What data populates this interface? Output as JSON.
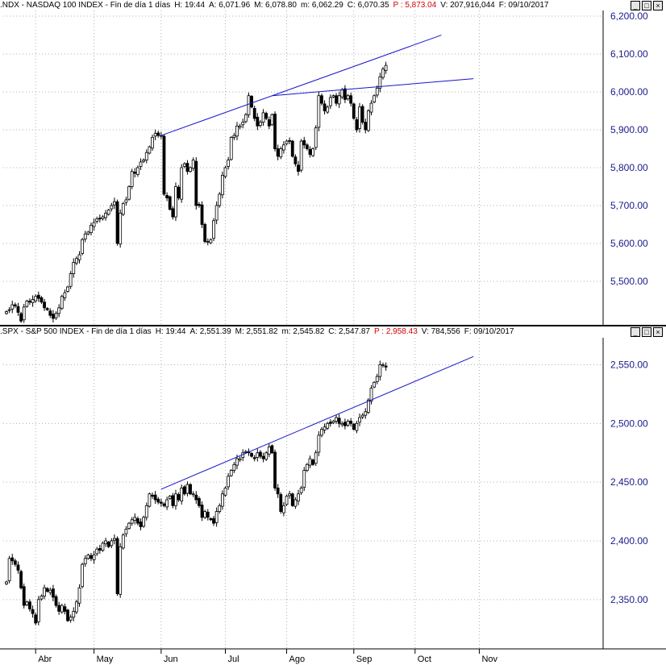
{
  "panels": [
    {
      "id": "ndx",
      "header": {
        "symbol": ".NDX - NASDAQ 100 INDEX - Fin de día 1 días",
        "h": "H: 19:44",
        "a": "A: 6,071.96",
        "m": "M: 6,078.80",
        "mn": "m: 6,062.29",
        "c": "C: 6,070.35",
        "p": "P : 5,873.04",
        "v": "V: 207,916,044",
        "f": "F: 09/10/2017"
      }
    },
    {
      "id": "spx",
      "header": {
        "symbol": ".SPX - S&P 500 INDEX - Fin de día 1 días",
        "h": "H: 19:44",
        "a": "A: 2,551.39",
        "m": "M: 2,551.82",
        "mn": "m: 2,545.82",
        "c": "C: 2,547.87",
        "p": "P : 2,958.43",
        "v": "V: 784,556",
        "f": "F: 09/10/2017"
      }
    }
  ],
  "window_buttons": [
    "_",
    "□",
    "×"
  ],
  "colors": {
    "axis_text": "#1a1a8c",
    "trendline": "#1515cc",
    "candle": "#000000",
    "grid": "#b0b0b0",
    "price_flag": "#d40000"
  },
  "chart_data": [
    {
      "type": "candlestick",
      "title": ".NDX - NASDAQ 100 INDEX",
      "ylim": [
        5385,
        6215
      ],
      "y_ticks": [
        5500,
        5600,
        5700,
        5800,
        5900,
        6000,
        6100,
        6200
      ],
      "y_tick_labels": [
        "5,500.00",
        "5,600.00",
        "5,700.00",
        "5,800.00",
        "5,900.00",
        "6,000.00",
        "6,100.00",
        "6,200.00"
      ],
      "grid": true,
      "trendlines": [
        {
          "from": [
            "2017-06-01",
            5885
          ],
          "to": [
            "2017-10-13",
            6150
          ]
        },
        {
          "from": [
            "2017-07-25",
            5990
          ],
          "to": [
            "2017-10-30",
            6035
          ]
        }
      ],
      "approx_close": [
        5420,
        5425,
        5438,
        5435,
        5418,
        5395,
        5432,
        5448,
        5445,
        5452,
        5460,
        5455,
        5445,
        5430,
        5425,
        5410,
        5402,
        5415,
        5430,
        5460,
        5470,
        5485,
        5520,
        5550,
        5560,
        5570,
        5610,
        5625,
        5630,
        5648,
        5655,
        5665,
        5665,
        5670,
        5680,
        5688,
        5700,
        5710,
        5600,
        5680,
        5705,
        5715,
        5750,
        5790,
        5785,
        5800,
        5815,
        5820,
        5840,
        5855,
        5880,
        5890,
        5885,
        5885,
        5730,
        5720,
        5690,
        5670,
        5750,
        5720,
        5800,
        5810,
        5790,
        5800,
        5820,
        5700,
        5700,
        5650,
        5605,
        5605,
        5610,
        5660,
        5700,
        5730,
        5780,
        5800,
        5820,
        5880,
        5885,
        5910,
        5910,
        5920,
        5940,
        5990,
        5960,
        5930,
        5910,
        5920,
        5945,
        5930,
        5910,
        5940,
        5850,
        5830,
        5850,
        5860,
        5870,
        5870,
        5830,
        5810,
        5790,
        5870,
        5860,
        5850,
        5835,
        5850,
        5905,
        5990,
        5970,
        5950,
        5960,
        5985,
        5990,
        5970,
        5990,
        6005,
        5980,
        5990,
        5970,
        5930,
        5900,
        5960,
        5920,
        5900,
        5950,
        5970,
        5990,
        6010,
        6040,
        6060,
        6070
      ],
      "x_ticks": [
        {
          "label": "Abr",
          "date": "2017-04-03"
        },
        {
          "label": "May",
          "date": "2017-05-01"
        },
        {
          "label": "Jun",
          "date": "2017-06-01"
        },
        {
          "label": "Jul",
          "date": "2017-07-03"
        },
        {
          "label": "Ago",
          "date": "2017-08-01"
        },
        {
          "label": "Sep",
          "date": "2017-09-01"
        },
        {
          "label": "Oct",
          "date": "2017-10-02"
        },
        {
          "label": "Nov",
          "date": "2017-11-01"
        }
      ]
    },
    {
      "type": "candlestick",
      "title": ".SPX - S&P 500 INDEX",
      "ylim": [
        2308,
        2573
      ],
      "y_ticks": [
        2350,
        2400,
        2450,
        2500,
        2550
      ],
      "y_tick_labels": [
        "2,350.00",
        "2,400.00",
        "2,450.00",
        "2,500.00",
        "2,550.00"
      ],
      "grid": true,
      "trendlines": [
        {
          "from": [
            "2017-06-01",
            2444
          ],
          "to": [
            "2017-10-30",
            2557
          ]
        }
      ],
      "approx_close": [
        2365,
        2385,
        2383,
        2380,
        2375,
        2360,
        2345,
        2348,
        2342,
        2338,
        2330,
        2350,
        2353,
        2360,
        2357,
        2358,
        2352,
        2345,
        2340,
        2345,
        2340,
        2332,
        2335,
        2340,
        2348,
        2360,
        2380,
        2385,
        2388,
        2385,
        2388,
        2393,
        2392,
        2398,
        2400,
        2395,
        2400,
        2402,
        2355,
        2395,
        2405,
        2410,
        2415,
        2418,
        2420,
        2415,
        2412,
        2420,
        2430,
        2440,
        2438,
        2435,
        2433,
        2432,
        2430,
        2435,
        2438,
        2430,
        2440,
        2435,
        2445,
        2440,
        2448,
        2440,
        2440,
        2435,
        2430,
        2420,
        2425,
        2420,
        2418,
        2415,
        2425,
        2430,
        2440,
        2445,
        2455,
        2460,
        2465,
        2470,
        2470,
        2475,
        2476,
        2475,
        2472,
        2470,
        2475,
        2472,
        2470,
        2475,
        2480,
        2475,
        2445,
        2440,
        2425,
        2430,
        2438,
        2440,
        2430,
        2435,
        2440,
        2445,
        2460,
        2465,
        2470,
        2465,
        2475,
        2490,
        2495,
        2497,
        2500,
        2500,
        2502,
        2505,
        2500,
        2500,
        2498,
        2502,
        2500,
        2495,
        2500,
        2505,
        2507,
        2510,
        2520,
        2530,
        2535,
        2540,
        2550,
        2550,
        2548
      ],
      "x_ticks": [
        {
          "label": "Abr",
          "date": "2017-04-03"
        },
        {
          "label": "May",
          "date": "2017-05-01"
        },
        {
          "label": "Jun",
          "date": "2017-06-01"
        },
        {
          "label": "Jul",
          "date": "2017-07-03"
        },
        {
          "label": "Ago",
          "date": "2017-08-01"
        },
        {
          "label": "Sep",
          "date": "2017-09-01"
        },
        {
          "label": "Oct",
          "date": "2017-10-02"
        },
        {
          "label": "Nov",
          "date": "2017-11-01"
        }
      ]
    }
  ]
}
